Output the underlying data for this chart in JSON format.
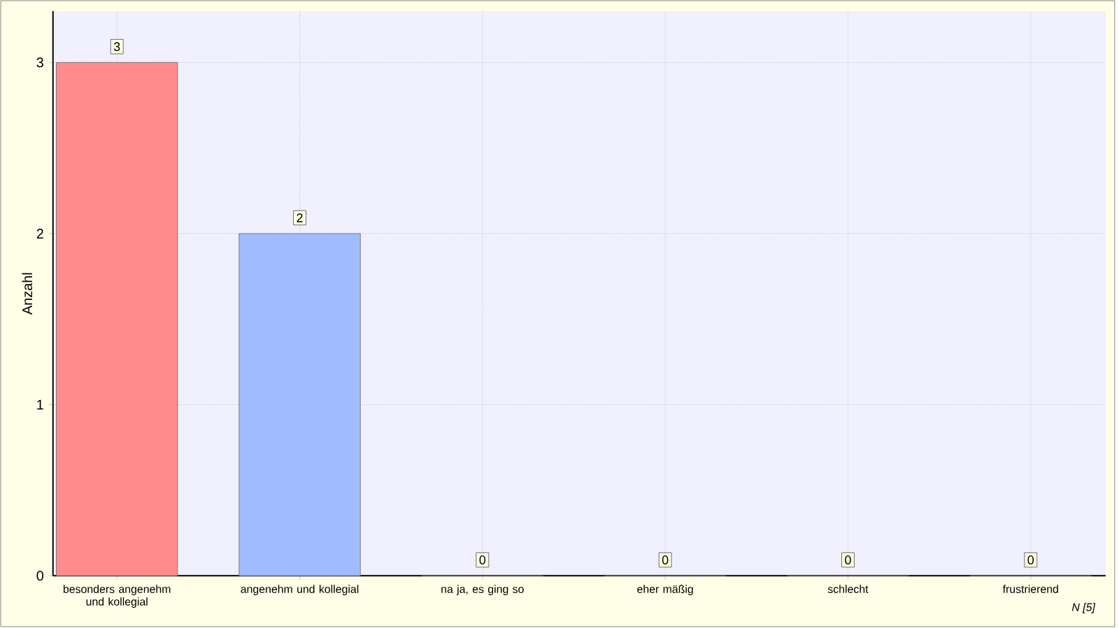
{
  "chart_data": {
    "type": "bar",
    "ylabel": "Anzahl",
    "categories": [
      "besonders angenehm und kollegial",
      "angenehm und kollegial",
      "na ja, es ging so",
      "eher mäßig",
      "schlecht",
      "frustrierend"
    ],
    "values": [
      3,
      2,
      0,
      0,
      0,
      0
    ],
    "colors": [
      "#ff8c8c",
      "#a0bcff",
      "#a0e0a0",
      "#ffe08c",
      "#d0a0ff",
      "#80d0d0"
    ],
    "ylim": [
      0,
      3.3
    ],
    "yticks": [
      0,
      1,
      2,
      3
    ],
    "grid": true,
    "data_labels": true,
    "annotations": [
      "N [5]"
    ]
  }
}
